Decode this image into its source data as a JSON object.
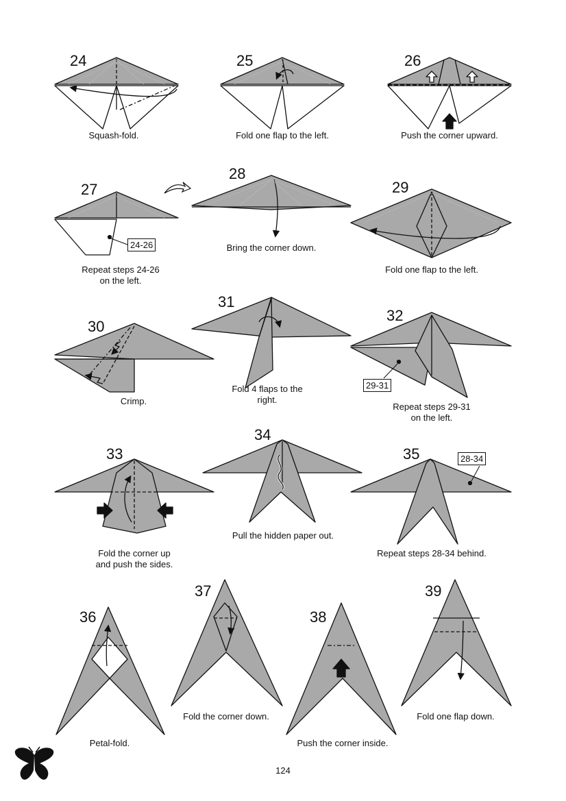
{
  "page": {
    "number": "124"
  },
  "colors": {
    "paper": "#a9a9a9",
    "line": "#111111",
    "light": "#ffffff"
  },
  "logo": {
    "icon": "butterfly-icon"
  },
  "steps": [
    {
      "num": "24",
      "caption": "Squash-fold."
    },
    {
      "num": "25",
      "caption": "Fold one flap to the left."
    },
    {
      "num": "26",
      "caption": "Push the corner upward."
    },
    {
      "num": "27",
      "caption_line1": "Repeat steps 24-26",
      "caption_line2": "on the left.",
      "ref": "24-26"
    },
    {
      "num": "28",
      "caption": "Bring the corner down."
    },
    {
      "num": "29",
      "caption": "Fold one flap to the left."
    },
    {
      "num": "30",
      "caption": "Crimp."
    },
    {
      "num": "31",
      "caption_line1": "Fold 4 flaps to the",
      "caption_line2": "right."
    },
    {
      "num": "32",
      "caption_line1": "Repeat steps 29-31",
      "caption_line2": "on the left.",
      "ref": "29-31"
    },
    {
      "num": "33",
      "caption_line1": "Fold the corner up",
      "caption_line2": "and push the sides."
    },
    {
      "num": "34",
      "caption": "Pull the hidden paper out."
    },
    {
      "num": "35",
      "caption": "Repeat steps 28-34 behind.",
      "ref": "28-34"
    },
    {
      "num": "36",
      "caption": "Petal-fold."
    },
    {
      "num": "37",
      "caption": "Fold the corner down."
    },
    {
      "num": "38",
      "caption": "Push the corner inside."
    },
    {
      "num": "39",
      "caption": "Fold one flap down."
    }
  ]
}
